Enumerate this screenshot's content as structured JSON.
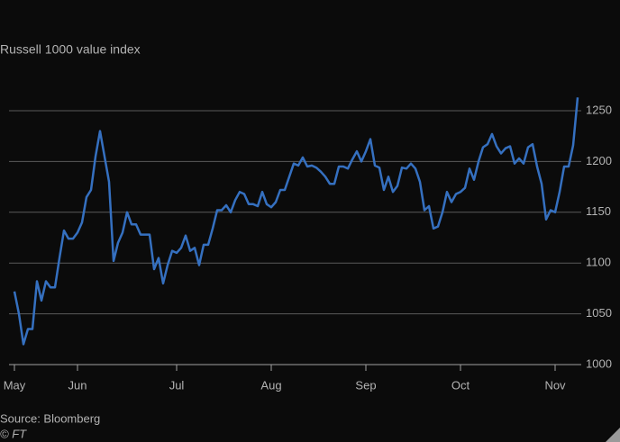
{
  "chart_data": {
    "type": "line",
    "title": "Russell 1000 value index",
    "source": "Source: Bloomberg",
    "credit": "© FT",
    "x": [
      0,
      1,
      2,
      3,
      4,
      5,
      6,
      7,
      8,
      9,
      10,
      11,
      12,
      13,
      14,
      15,
      16,
      17,
      18,
      19,
      20,
      21,
      22,
      23,
      24,
      25,
      26,
      27,
      28,
      29,
      30,
      31,
      32,
      33,
      34,
      35,
      36,
      37,
      38,
      39,
      40,
      41,
      42,
      43,
      44,
      45,
      46,
      47,
      48,
      49,
      50,
      51,
      52,
      53,
      54,
      55,
      56,
      57,
      58,
      59,
      60,
      61,
      62,
      63,
      64,
      65,
      66,
      67,
      68,
      69,
      70,
      71,
      72,
      73,
      74,
      75,
      76,
      77,
      78,
      79,
      80,
      81,
      82,
      83,
      84,
      85,
      86,
      87,
      88,
      89,
      90,
      91,
      92,
      93,
      94,
      95,
      96,
      97,
      98,
      99,
      100,
      101,
      102,
      103,
      104,
      105,
      106,
      107,
      108,
      109,
      110,
      111,
      112,
      113,
      114,
      115,
      116,
      117,
      118,
      119,
      120,
      121,
      122,
      123,
      124,
      125
    ],
    "series": [
      {
        "name": "Russell 1000 value index",
        "color": "#3570c0",
        "values": [
          1072,
          1050,
          1020,
          1035,
          1035,
          1082,
          1063,
          1082,
          1076,
          1076,
          1105,
          1132,
          1124,
          1124,
          1130,
          1140,
          1165,
          1172,
          1205,
          1230,
          1205,
          1180,
          1102,
          1120,
          1130,
          1150,
          1138,
          1138,
          1128,
          1128,
          1128,
          1094,
          1105,
          1080,
          1098,
          1112,
          1110,
          1115,
          1127,
          1112,
          1115,
          1098,
          1118,
          1118,
          1134,
          1152,
          1152,
          1157,
          1150,
          1162,
          1170,
          1168,
          1158,
          1158,
          1156,
          1170,
          1158,
          1155,
          1160,
          1172,
          1172,
          1185,
          1198,
          1196,
          1204,
          1195,
          1196,
          1194,
          1190,
          1185,
          1178,
          1178,
          1195,
          1195,
          1193,
          1202,
          1210,
          1200,
          1210,
          1222,
          1196,
          1194,
          1172,
          1185,
          1170,
          1176,
          1194,
          1193,
          1198,
          1193,
          1180,
          1152,
          1156,
          1134,
          1136,
          1150,
          1170,
          1160,
          1168,
          1170,
          1174,
          1193,
          1182,
          1200,
          1214,
          1217,
          1227,
          1215,
          1208,
          1213,
          1215,
          1198,
          1203,
          1198,
          1214,
          1217,
          1195,
          1178,
          1143,
          1152,
          1150,
          1170,
          1195,
          1195,
          1216,
          1263
        ]
      }
    ],
    "xlim": [
      0,
      125
    ],
    "xticks": [
      {
        "value": 0,
        "label": "May"
      },
      {
        "value": 14,
        "label": "Jun"
      },
      {
        "value": 36,
        "label": "Jul"
      },
      {
        "value": 57,
        "label": "Aug"
      },
      {
        "value": 78,
        "label": "Sep"
      },
      {
        "value": 99,
        "label": "Oct"
      },
      {
        "value": 120,
        "label": "Nov"
      }
    ],
    "ylim": [
      1000,
      1270
    ],
    "yticks": [
      1000,
      1050,
      1100,
      1150,
      1200,
      1250
    ],
    "grid": true
  }
}
